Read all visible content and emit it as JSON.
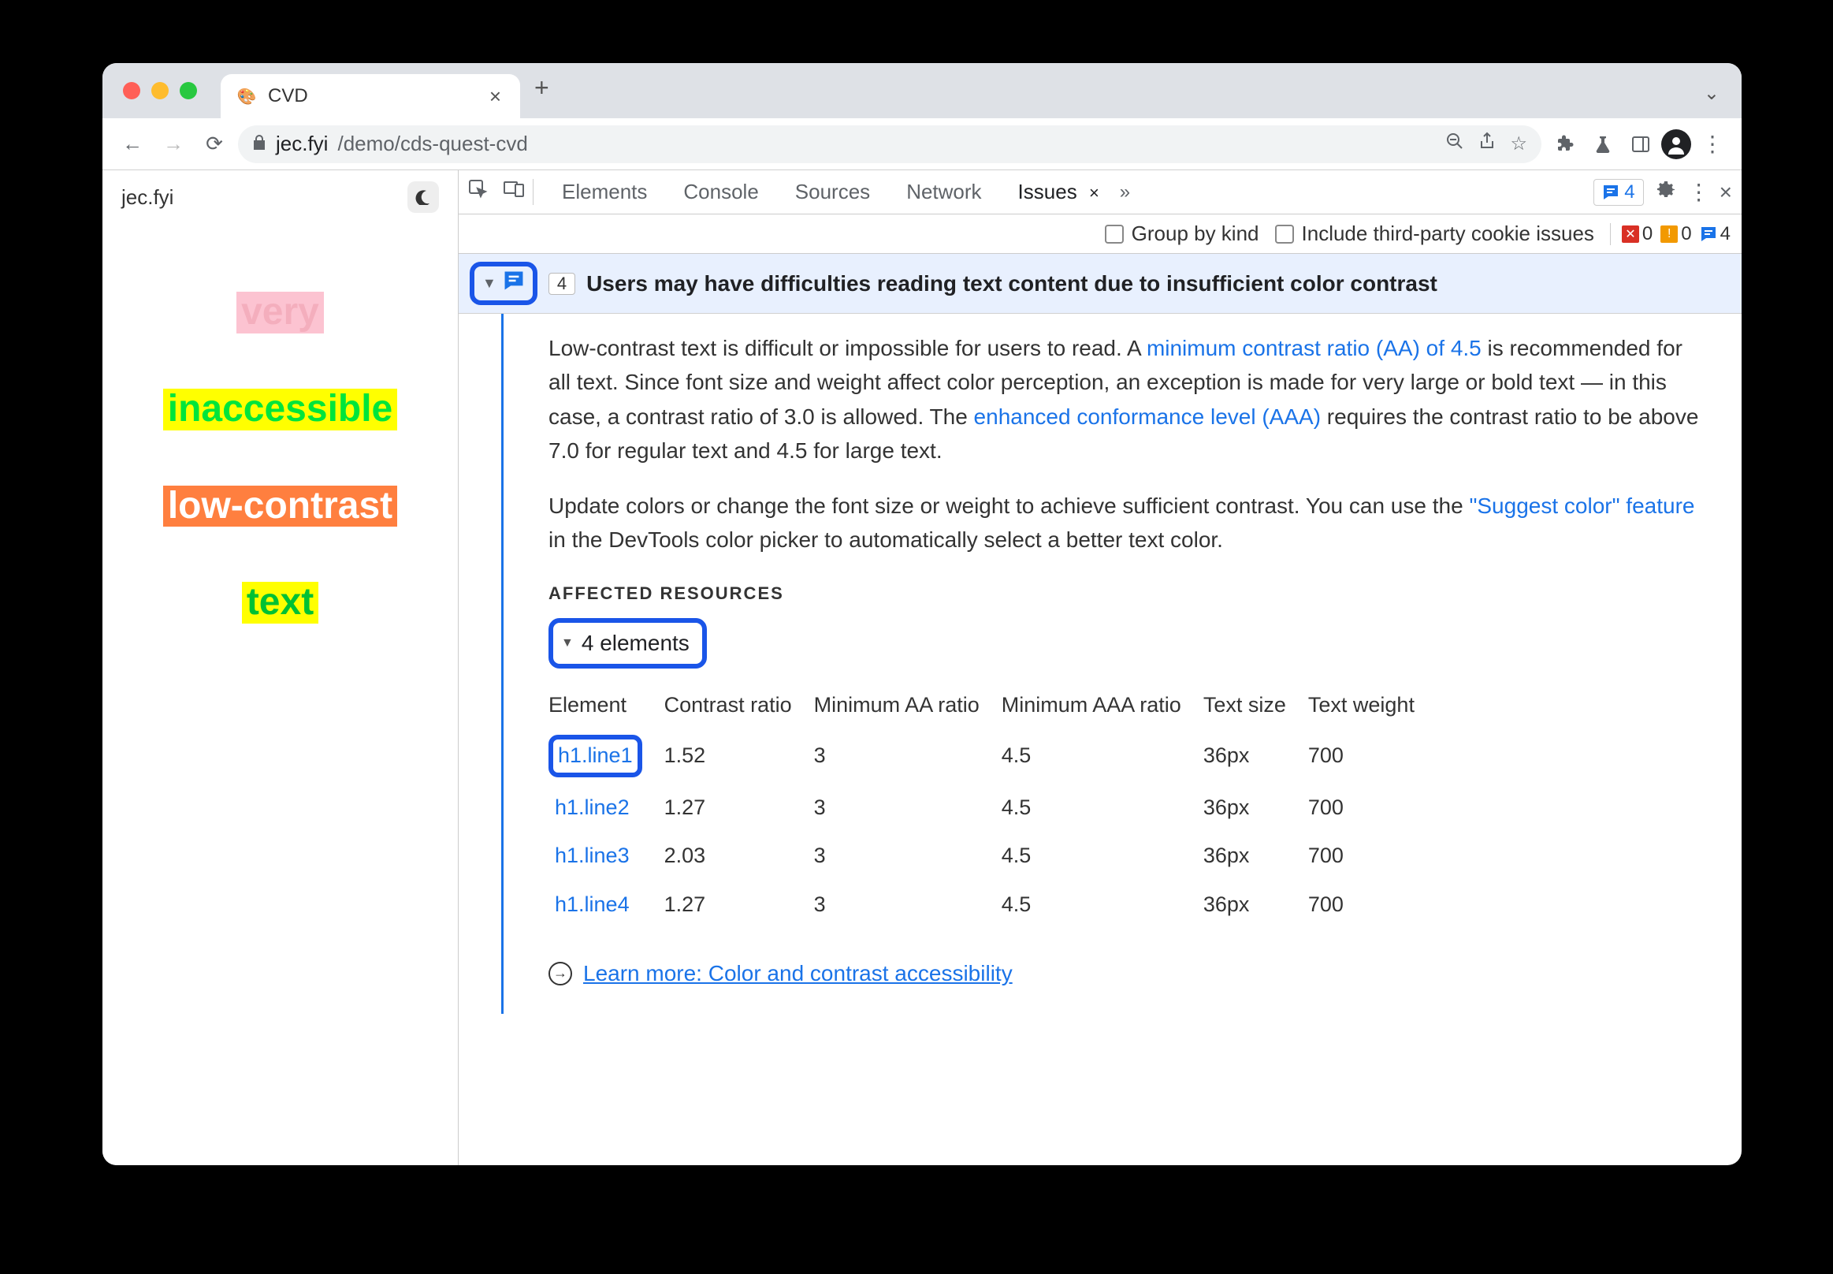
{
  "window": {
    "tab_title": "CVD",
    "favicon_glyph": "🎨",
    "url_host": "jec.fyi",
    "url_path": "/demo/cds-quest-cvd"
  },
  "page": {
    "site_name": "jec.fyi",
    "lines": [
      {
        "text": "very",
        "fg": "#f4aebd",
        "bg": "#fcc3d1"
      },
      {
        "text": "inaccessible",
        "fg": "#00e53b",
        "bg": "#ffff00"
      },
      {
        "text": "low-contrast",
        "fg": "#ffffff",
        "bg": "#ff7f3f"
      },
      {
        "text": "text",
        "fg": "#00c134",
        "bg": "#ffff00"
      }
    ]
  },
  "devtools": {
    "tabs": [
      "Elements",
      "Console",
      "Sources",
      "Network"
    ],
    "active_tab": "Issues",
    "issues_badge_count": "4",
    "subbar": {
      "group_by_kind": "Group by kind",
      "third_party": "Include third-party cookie issues",
      "counts": {
        "error_count": "0",
        "warn_count": "0",
        "info_count": "4",
        "error_color": "#d93025",
        "warn_color": "#f29900",
        "info_color": "#1a73e8"
      }
    }
  },
  "issue": {
    "count": "4",
    "title": "Users may have difficulties reading text content due to insufficient color contrast",
    "para1_a": "Low-contrast text is difficult or impossible for users to read. A ",
    "para1_link1": "minimum contrast ratio (AA) of 4.5",
    "para1_b": " is recommended for all text. Since font size and weight affect color perception, an exception is made for very large or bold text — in this case, a contrast ratio of 3.0 is allowed. The ",
    "para1_link2": "enhanced conformance level (AAA)",
    "para1_c": " requires the contrast ratio to be above 7.0 for regular text and 4.5 for large text.",
    "para2_a": "Update colors or change the font size or weight to achieve sufficient contrast. You can use the ",
    "para2_link": "\"Suggest color\" feature",
    "para2_b": " in the DevTools color picker to automatically select a better text color.",
    "affected_heading": "AFFECTED RESOURCES",
    "elements_label": "4 elements",
    "table": {
      "columns": [
        "Element",
        "Contrast ratio",
        "Minimum AA ratio",
        "Minimum AAA ratio",
        "Text size",
        "Text weight"
      ],
      "rows": [
        {
          "element": "h1.line1",
          "contrast": "1.52",
          "aa": "3",
          "aaa": "4.5",
          "size": "36px",
          "weight": "700",
          "highlight": true
        },
        {
          "element": "h1.line2",
          "contrast": "1.27",
          "aa": "3",
          "aaa": "4.5",
          "size": "36px",
          "weight": "700",
          "highlight": false
        },
        {
          "element": "h1.line3",
          "contrast": "2.03",
          "aa": "3",
          "aaa": "4.5",
          "size": "36px",
          "weight": "700",
          "highlight": false
        },
        {
          "element": "h1.line4",
          "contrast": "1.27",
          "aa": "3",
          "aaa": "4.5",
          "size": "36px",
          "weight": "700",
          "highlight": false
        }
      ]
    },
    "learn_more": "Learn more: Color and contrast accessibility"
  }
}
